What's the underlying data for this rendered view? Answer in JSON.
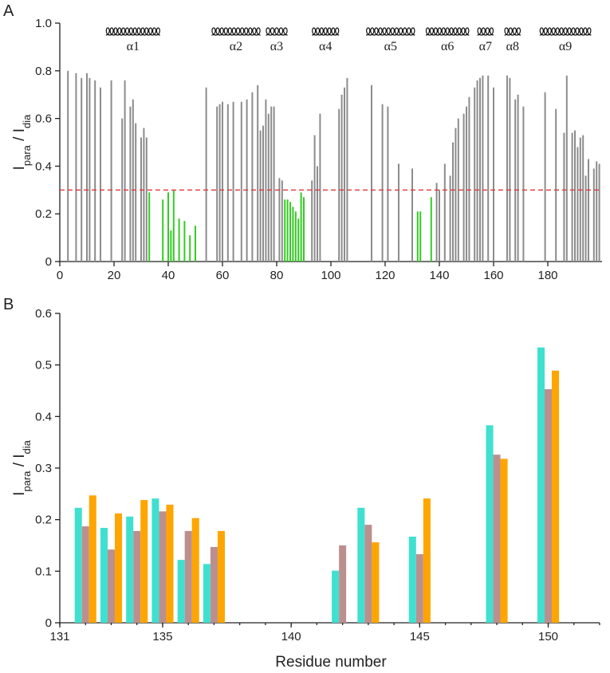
{
  "chart_data": [
    {
      "type": "bar",
      "panel_label": "A",
      "y_label_parts": [
        "I",
        "para",
        " / I",
        "dia"
      ],
      "xlim": [
        0,
        200
      ],
      "xticks": [
        0,
        20,
        40,
        60,
        80,
        100,
        120,
        140,
        160,
        180
      ],
      "ylim": [
        0,
        1
      ],
      "yticks": [
        0,
        {
          "value": 0.2,
          "label": "0.2"
        },
        {
          "value": 0.4,
          "label": "0.4"
        },
        {
          "value": 0.6,
          "label": "0.6"
        },
        {
          "value": 0.8,
          "label": "0.8"
        },
        {
          "value": 1,
          "label": "1.0"
        }
      ],
      "threshold": {
        "value": 0.3,
        "color": "#e03a3a"
      },
      "helices": [
        {
          "label": "α1",
          "start": 17,
          "end": 37
        },
        {
          "label": "α2",
          "start": 56,
          "end": 74
        },
        {
          "label": "α3",
          "start": 76,
          "end": 84
        },
        {
          "label": "α4",
          "start": 93,
          "end": 103
        },
        {
          "label": "α5",
          "start": 113,
          "end": 131
        },
        {
          "label": "α6",
          "start": 135,
          "end": 151
        },
        {
          "label": "α7",
          "start": 154,
          "end": 160
        },
        {
          "label": "α8",
          "start": 164,
          "end": 170
        },
        {
          "label": "α9",
          "start": 177,
          "end": 196
        }
      ],
      "series": [
        {
          "color": "#8c8c8c",
          "x": [
            3,
            6,
            8,
            10,
            11,
            13,
            15,
            19,
            23,
            24,
            26,
            27,
            28,
            30,
            31,
            32,
            54,
            58,
            59,
            60,
            62,
            64,
            67,
            69,
            71,
            73,
            74,
            75,
            76,
            77,
            78,
            79,
            81,
            82,
            93,
            94,
            95,
            96,
            103,
            104,
            105,
            106,
            115,
            119,
            121,
            125,
            130,
            139,
            140,
            142,
            144,
            145,
            146,
            147,
            149,
            150,
            151,
            153,
            154,
            155,
            156,
            158,
            160,
            165,
            166,
            168,
            169,
            171,
            179,
            183,
            186,
            187,
            189,
            190,
            191,
            192,
            193,
            194,
            195,
            197,
            198,
            199
          ],
          "values": [
            0.8,
            0.79,
            0.77,
            0.79,
            0.77,
            0.76,
            0.73,
            0.76,
            0.6,
            0.76,
            0.65,
            0.68,
            0.58,
            0.52,
            0.56,
            0.52,
            0.73,
            0.65,
            0.66,
            0.67,
            0.66,
            0.67,
            0.67,
            0.68,
            0.71,
            0.74,
            0.55,
            0.57,
            0.68,
            0.62,
            0.65,
            0.65,
            0.35,
            0.34,
            0.34,
            0.53,
            0.4,
            0.62,
            0.64,
            0.7,
            0.73,
            0.77,
            0.74,
            0.66,
            0.65,
            0.41,
            0.39,
            0.33,
            0.3,
            0.41,
            0.36,
            0.5,
            0.56,
            0.6,
            0.62,
            0.65,
            0.69,
            0.73,
            0.76,
            0.77,
            0.78,
            0.78,
            0.73,
            0.78,
            0.77,
            0.68,
            0.7,
            0.65,
            0.71,
            0.64,
            0.54,
            0.78,
            0.54,
            0.55,
            0.48,
            0.52,
            0.53,
            0.36,
            0.43,
            0.39,
            0.42,
            0.41
          ]
        },
        {
          "color": "#33cc22",
          "x": [
            33,
            38,
            40,
            41,
            42,
            44,
            46,
            48,
            50,
            83,
            84,
            85,
            86,
            87,
            88,
            89,
            90,
            132,
            133,
            137
          ],
          "values": [
            0.29,
            0.26,
            0.29,
            0.13,
            0.3,
            0.18,
            0.17,
            0.11,
            0.15,
            0.26,
            0.26,
            0.25,
            0.23,
            0.21,
            0.18,
            0.29,
            0.27,
            0.21,
            0.21,
            0.27
          ]
        }
      ]
    },
    {
      "type": "grouped-bar",
      "panel_label": "B",
      "y_label_parts": [
        "I",
        "para",
        " / I",
        "dia"
      ],
      "x_label": "Residue number",
      "xlim": [
        131,
        152
      ],
      "xticks": [
        131,
        135,
        140,
        145,
        150
      ],
      "ylim": [
        0,
        0.6
      ],
      "yticks": [
        0,
        0.1,
        0.2,
        0.3,
        0.4,
        0.5,
        0.6
      ],
      "x": [
        132,
        133,
        134,
        135,
        136,
        137,
        142,
        143,
        145,
        148,
        150
      ],
      "series": [
        {
          "color": "#40e0d0",
          "values": [
            0.223,
            0.184,
            0.206,
            0.241,
            0.122,
            0.114,
            0.101,
            0.223,
            0.167,
            0.383,
            0.534
          ]
        },
        {
          "color": "#bc8f8f",
          "values": [
            0.187,
            0.142,
            0.178,
            0.216,
            0.178,
            0.147,
            0.15,
            0.19,
            0.133,
            0.326,
            0.453
          ]
        },
        {
          "color": "#ffa500",
          "values": [
            0.247,
            0.212,
            0.238,
            0.229,
            0.203,
            0.178,
            null,
            0.156,
            0.241,
            0.318,
            0.489
          ]
        }
      ]
    }
  ]
}
